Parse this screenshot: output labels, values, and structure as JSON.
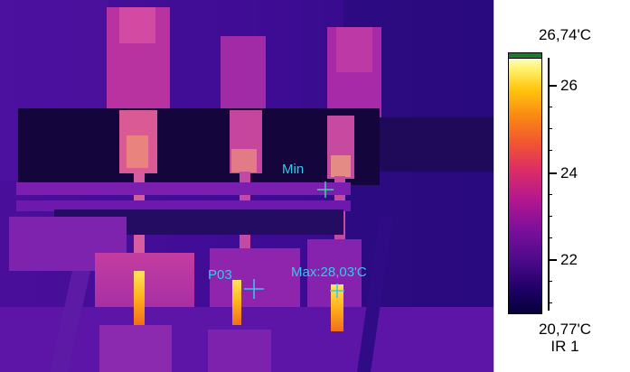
{
  "image": {
    "markers": {
      "min_label": "Min",
      "max_label": "Max:28,03'C",
      "point_label": "P03"
    }
  },
  "scale": {
    "max_label": "26,74'C",
    "min_label": "20,77'C",
    "mode_label": "IR 1",
    "ticks": [
      {
        "label": "26"
      },
      {
        "label": "24"
      },
      {
        "label": "22"
      }
    ]
  },
  "colors": {
    "marker": "#35c8e8",
    "saturation_cap": "#1b7b2a"
  },
  "icons": [
    "crosshair-icon"
  ]
}
